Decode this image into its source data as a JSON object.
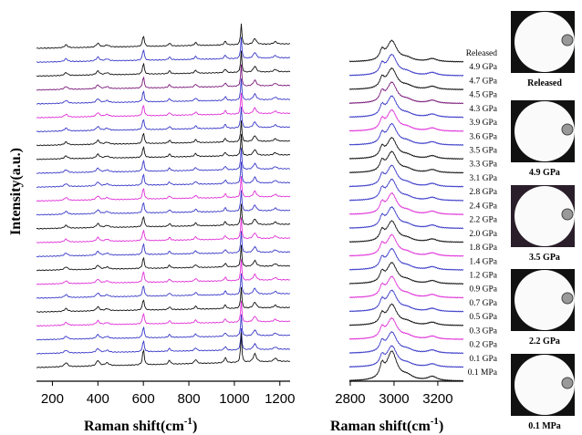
{
  "chart_data": [
    {
      "type": "spectra",
      "ylabel": "Intensity(a.u.)",
      "xlabel": "Raman shift(cm",
      "xlabel_sup": "-1",
      "xlabel_end": ")",
      "xlim": [
        130,
        1245
      ],
      "xticks": [
        200,
        400,
        600,
        800,
        1000,
        1200
      ]
    },
    {
      "type": "spectra",
      "xlabel": "Raman shift(cm",
      "xlabel_sup": "-1",
      "xlabel_end": ")",
      "xlim": [
        2796,
        3317
      ],
      "xticks": [
        2800,
        3000,
        3200
      ],
      "series": [
        {
          "name": "Released",
          "color": "#111111"
        },
        {
          "name": "4.9 GPa",
          "color": "#3838c8"
        },
        {
          "name": "4.7 GPa",
          "color": "#111111"
        },
        {
          "name": "4.5 GPa",
          "color": "#7a1a7a"
        },
        {
          "name": "4.3 GPa",
          "color": "#3838c8"
        },
        {
          "name": "3.9 GPa",
          "color": "#e030d8"
        },
        {
          "name": "3.6 GPa",
          "color": "#3838c8"
        },
        {
          "name": "3.5 GPa",
          "color": "#111111"
        },
        {
          "name": "3.3 GPa",
          "color": "#111111"
        },
        {
          "name": "3.1 GPa",
          "color": "#3838c8"
        },
        {
          "name": "2.8 GPa",
          "color": "#3838c8"
        },
        {
          "name": "2.4 GPa",
          "color": "#e030d8"
        },
        {
          "name": "2.2 GPa",
          "color": "#3838c8"
        },
        {
          "name": "2.0 GPa",
          "color": "#111111"
        },
        {
          "name": "1.8 GPa",
          "color": "#e030d8"
        },
        {
          "name": "1.4 GPa",
          "color": "#3838c8"
        },
        {
          "name": "1.2 GPa",
          "color": "#111111"
        },
        {
          "name": "0.9 GPa",
          "color": "#e030d8"
        },
        {
          "name": "0.7 GPa",
          "color": "#3838c8"
        },
        {
          "name": "0.5 GPa",
          "color": "#111111"
        },
        {
          "name": "0.3 GPa",
          "color": "#e030d8"
        },
        {
          "name": "0.2 GPa",
          "color": "#3838c8"
        },
        {
          "name": "0.1 GPa",
          "color": "#3838c8"
        },
        {
          "name": "0.1 MPa",
          "color": "#111111"
        }
      ]
    }
  ],
  "images": [
    {
      "caption": "Released"
    },
    {
      "caption": "4.9 GPa"
    },
    {
      "caption": "3.5 GPa"
    },
    {
      "caption": "2.2 GPa"
    },
    {
      "caption": "0.1 MPa"
    }
  ]
}
